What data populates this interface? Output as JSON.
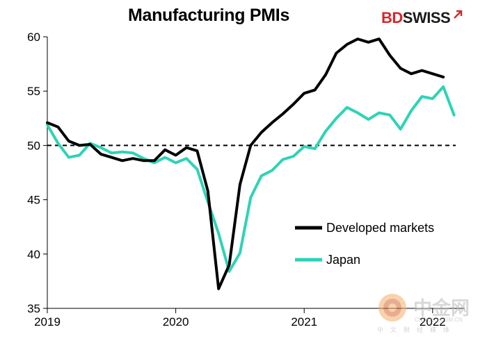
{
  "header": {
    "title": "Manufacturing PMIs",
    "logo_bd": "BD",
    "logo_swiss": "SWISS"
  },
  "watermark": {
    "text": "中金网",
    "url": "CNGOLD.COM.CN",
    "subtext": "中文财经媒体"
  },
  "colors": {
    "developed": "#000000",
    "japan": "#2ed3b7",
    "reference": "#000000",
    "brand_red": "#d9262c"
  },
  "chart_data": {
    "type": "line",
    "title": "Manufacturing PMIs",
    "xlabel": "",
    "ylabel": "",
    "xlim": [
      "2019-01",
      "2022-04"
    ],
    "ylim": [
      35,
      60
    ],
    "y_ticks": [
      35,
      40,
      45,
      50,
      55,
      60
    ],
    "x_tick_labels": [
      "2019",
      "2020",
      "2021",
      "2022"
    ],
    "x_ticks": [
      "2019-01",
      "2020-01",
      "2021-01",
      "2022-01"
    ],
    "reference_line": {
      "y": 50,
      "style": "dashed"
    },
    "grid": false,
    "legend_position": "bottom-right",
    "x": [
      "2019-01",
      "2019-02",
      "2019-03",
      "2019-04",
      "2019-05",
      "2019-06",
      "2019-07",
      "2019-08",
      "2019-09",
      "2019-10",
      "2019-11",
      "2019-12",
      "2020-01",
      "2020-02",
      "2020-03",
      "2020-04",
      "2020-05",
      "2020-06",
      "2020-07",
      "2020-08",
      "2020-09",
      "2020-10",
      "2020-11",
      "2020-12",
      "2021-01",
      "2021-02",
      "2021-03",
      "2021-04",
      "2021-05",
      "2021-06",
      "2021-07",
      "2021-08",
      "2021-09",
      "2021-10",
      "2021-11",
      "2021-12",
      "2022-01",
      "2022-02",
      "2022-03",
      "2022-04"
    ],
    "series": [
      {
        "name": "Developed markets",
        "values": [
          52.1,
          51.7,
          50.4,
          50.0,
          50.1,
          49.2,
          48.9,
          48.6,
          48.8,
          48.6,
          48.6,
          49.6,
          49.1,
          49.8,
          49.5,
          45.8,
          36.8,
          39.0,
          46.4,
          50.0,
          51.2,
          52.1,
          52.9,
          53.8,
          54.8,
          55.1,
          56.5,
          58.5,
          59.3,
          59.8,
          59.5,
          59.8,
          58.3,
          57.1,
          56.6,
          56.9,
          56.6,
          56.3,
          null,
          null
        ]
      },
      {
        "name": "Japan",
        "values": [
          51.9,
          50.2,
          48.9,
          49.1,
          50.2,
          49.8,
          49.3,
          49.4,
          49.3,
          48.8,
          48.4,
          48.9,
          48.4,
          48.8,
          47.8,
          44.8,
          41.9,
          38.4,
          40.1,
          45.2,
          47.2,
          47.7,
          48.7,
          49.0,
          49.9,
          49.7,
          51.3,
          52.5,
          53.5,
          53.0,
          52.4,
          53.0,
          52.8,
          51.5,
          53.2,
          54.5,
          54.3,
          55.4,
          52.8,
          null
        ]
      }
    ]
  }
}
